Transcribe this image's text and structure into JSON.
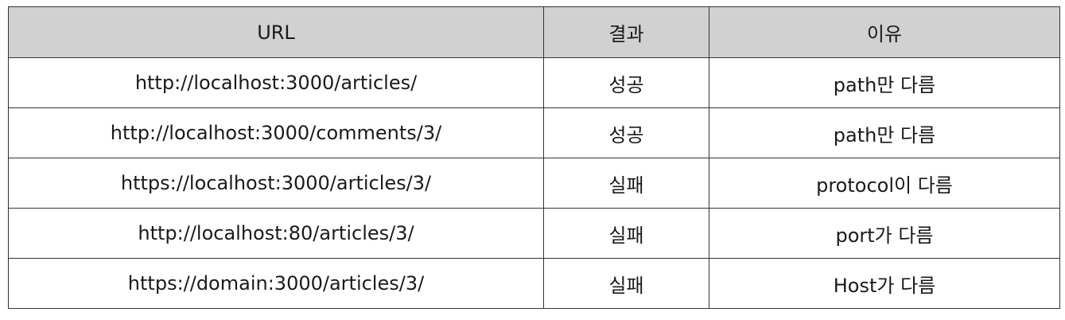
{
  "table": {
    "headers": [
      "URL",
      "결과",
      "이유"
    ],
    "rows": [
      {
        "url": "http://localhost:3000/articles/",
        "result": "성공",
        "reason": "path만 다름"
      },
      {
        "url": "http://localhost:3000/comments/3/",
        "result": "성공",
        "reason": "path만 다름"
      },
      {
        "url": "https://localhost:3000/articles/3/",
        "result": "실패",
        "reason": "protocol이 다름"
      },
      {
        "url": "http://localhost:80/articles/3/",
        "result": "실패",
        "reason": "port가 다름"
      },
      {
        "url": "https://domain:3000/articles/3/",
        "result": "실패",
        "reason": "Host가 다름"
      }
    ]
  },
  "colors": {
    "header_bg": "#d1d1d1",
    "border": "#333333",
    "cell_bg": "#ffffff"
  }
}
